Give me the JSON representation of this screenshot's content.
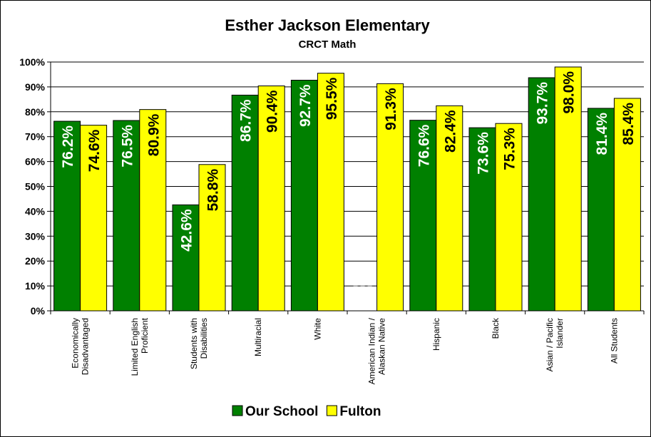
{
  "chart_data": {
    "type": "bar",
    "title": "Esther Jackson Elementary",
    "subtitle": "CRCT Math",
    "categories": [
      [
        "Economically",
        "Disadvantaged"
      ],
      [
        "Limited English",
        "Proficient"
      ],
      [
        "Students with",
        "Disabilities"
      ],
      [
        "Multiracial"
      ],
      [
        "White"
      ],
      [
        "American Indian /",
        "Alaskan Native"
      ],
      [
        "Hispanic"
      ],
      [
        "Black"
      ],
      [
        "Asian / Pacific",
        "Islander"
      ],
      [
        "All Students"
      ]
    ],
    "series": [
      {
        "name": "Our School",
        "color": "#008000",
        "label_color": "#ffffff",
        "values": [
          76.2,
          76.5,
          42.6,
          86.7,
          92.7,
          null,
          76.6,
          73.6,
          93.7,
          81.4
        ],
        "labels": [
          "76.2%",
          "76.5%",
          "42.6%",
          "86.7%",
          "92.7%",
          "",
          "76.6%",
          "73.6%",
          "93.7%",
          "81.4%"
        ]
      },
      {
        "name": "Fulton",
        "color": "#ffff00",
        "label_color": "#000000",
        "values": [
          74.6,
          80.9,
          58.8,
          90.4,
          95.5,
          91.3,
          82.4,
          75.3,
          98.0,
          85.4
        ],
        "labels": [
          "74.6%",
          "80.9%",
          "58.8%",
          "90.4%",
          "95.5%",
          "91.3%",
          "82.4%",
          "75.3%",
          "98.0%",
          "85.4%"
        ]
      }
    ],
    "yticks": [
      "0%",
      "10%",
      "20%",
      "30%",
      "40%",
      "50%",
      "60%",
      "70%",
      "80%",
      "90%",
      "100%"
    ],
    "ylim": [
      0,
      100
    ],
    "grid": true,
    "legend_position": "bottom",
    "xlabel": "",
    "ylabel": ""
  }
}
